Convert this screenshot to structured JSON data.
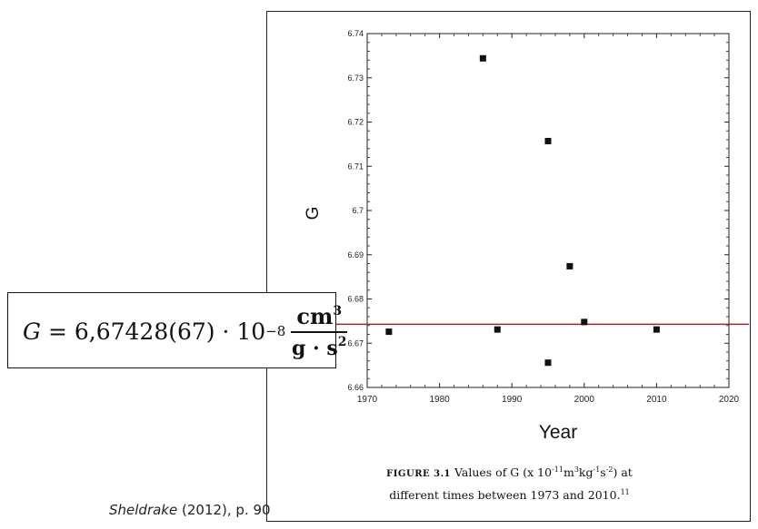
{
  "chart_data": {
    "type": "scatter",
    "ylabel": "G",
    "xlabel": "Year",
    "xlim": [
      1970,
      2020
    ],
    "ylim": [
      6.66,
      6.74
    ],
    "x_ticks": [
      1970,
      1980,
      1990,
      2000,
      2010,
      2020
    ],
    "y_ticks": [
      6.66,
      6.67,
      6.68,
      6.69,
      6.7,
      6.71,
      6.72,
      6.73,
      6.74
    ],
    "y_tick_labels": [
      "6.66",
      "6.67",
      "6.68",
      "6.69",
      "6.7",
      "6.71",
      "6.72",
      "6.73",
      "6.74"
    ],
    "points": [
      {
        "x": 1973,
        "y": 6.6726
      },
      {
        "x": 1986,
        "y": 6.7344
      },
      {
        "x": 1988,
        "y": 6.6731
      },
      {
        "x": 1995,
        "y": 6.7157
      },
      {
        "x": 1995,
        "y": 6.6656
      },
      {
        "x": 1998,
        "y": 6.6874
      },
      {
        "x": 2000,
        "y": 6.6748
      },
      {
        "x": 2010,
        "y": 6.6731
      }
    ],
    "reference_line": {
      "y": 6.67428,
      "color": "#b41e1e"
    },
    "grid": false,
    "marker_color": "#111111"
  },
  "formula": {
    "lhs": "G",
    "equals": "=",
    "value": "6,67428(67)",
    "times": "·",
    "base": "10",
    "exponent": "−8",
    "num_unit": "cm",
    "num_exp": "3",
    "den_unit": "g · s",
    "den_exp": "2"
  },
  "caption": {
    "label": "FIGURE 3.1",
    "text1": "Values of G (x 10",
    "exp1": "-11",
    "text2": "m",
    "exp2": "3",
    "text3": "kg",
    "exp3": "-1",
    "text4": "s",
    "exp4": "-2",
    "text5": ") at",
    "line2": "different times between 1973 and 2010.",
    "ref": "11"
  },
  "source": {
    "author": "Sheldrake",
    "rest": " (2012), p. 90"
  }
}
